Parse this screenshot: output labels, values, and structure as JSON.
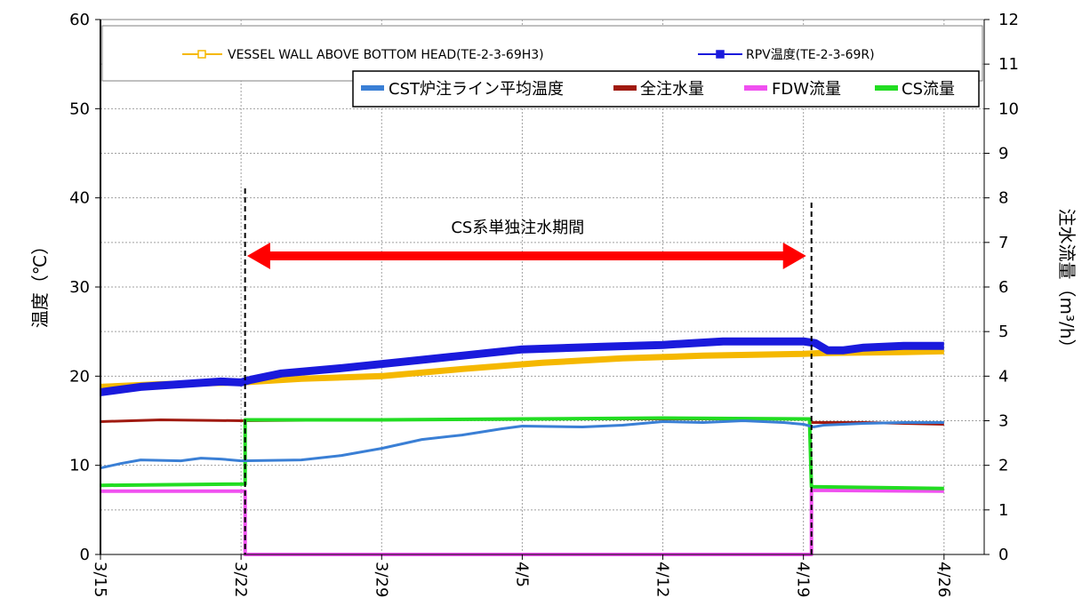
{
  "chart_data": {
    "type": "line",
    "title": "",
    "ylabel": "温度（℃）",
    "y2label": "注水流量（m³/h）",
    "ylim": [
      0,
      60
    ],
    "y2lim": [
      0,
      12
    ],
    "grid": true,
    "x_tick_labels": [
      "3/15",
      "3/22",
      "3/29",
      "4/5",
      "4/12",
      "4/19",
      "4/26"
    ],
    "x_tick_days": [
      0,
      7,
      14,
      21,
      28,
      35,
      42
    ],
    "y_ticks": [
      "0",
      "10",
      "20",
      "30",
      "40",
      "50",
      "60"
    ],
    "y2_ticks": [
      "0",
      "1",
      "2",
      "3",
      "4",
      "5",
      "6",
      "7",
      "8",
      "9",
      "10",
      "11",
      "12"
    ],
    "legend_top": [
      {
        "name": "VESSEL WALL ABOVE BOTTOM HEAD(TE-2-3-69H3)",
        "color": "#f5b800"
      },
      {
        "name": "RPV温度(TE-2-3-69R)",
        "color": "#1a1adc"
      }
    ],
    "legend_bottom": [
      {
        "name": "CST炉注ライン平均温度",
        "color": "#3a7fd5"
      },
      {
        "name": "全注水量",
        "color": "#a01a10"
      },
      {
        "name": "FDW流量",
        "color": "#f050f0"
      },
      {
        "name": "CS流量",
        "color": "#22dd22"
      }
    ],
    "annotation": {
      "text": "CS系単独注水期間",
      "from_day": 7.3,
      "to_day": 35.4
    },
    "vlines_days": [
      7.2,
      35.4
    ],
    "series": [
      {
        "name": "VESSEL WALL ABOVE BOTTOM HEAD(TE-2-3-69H3)",
        "axis": "left",
        "color": "#f5b800",
        "width": 7,
        "points": [
          [
            0,
            18.8
          ],
          [
            3,
            19.1
          ],
          [
            7,
            19.3
          ],
          [
            10,
            19.7
          ],
          [
            14,
            20.0
          ],
          [
            18,
            20.8
          ],
          [
            22,
            21.5
          ],
          [
            26,
            22.0
          ],
          [
            30,
            22.3
          ],
          [
            35,
            22.5
          ],
          [
            36,
            22.6
          ],
          [
            40,
            22.7
          ],
          [
            42,
            22.8
          ]
        ]
      },
      {
        "name": "RPV温度(TE-2-3-69R)",
        "axis": "left",
        "color": "#1a1adc",
        "width": 9,
        "points": [
          [
            0,
            18.2
          ],
          [
            2,
            18.8
          ],
          [
            4,
            19.1
          ],
          [
            6,
            19.4
          ],
          [
            7,
            19.3
          ],
          [
            7.5,
            19.6
          ],
          [
            9,
            20.3
          ],
          [
            12,
            20.9
          ],
          [
            15,
            21.6
          ],
          [
            18,
            22.3
          ],
          [
            21,
            23.0
          ],
          [
            25,
            23.3
          ],
          [
            28,
            23.5
          ],
          [
            31,
            23.9
          ],
          [
            35,
            23.9
          ],
          [
            35.6,
            23.7
          ],
          [
            36.2,
            22.9
          ],
          [
            37,
            22.9
          ],
          [
            38,
            23.2
          ],
          [
            40,
            23.4
          ],
          [
            42,
            23.4
          ]
        ]
      },
      {
        "name": "CST炉注ライン平均温度",
        "axis": "left",
        "color": "#3a7fd5",
        "width": 3,
        "points": [
          [
            0,
            9.7
          ],
          [
            1,
            10.2
          ],
          [
            2,
            10.6
          ],
          [
            4,
            10.5
          ],
          [
            5,
            10.8
          ],
          [
            6,
            10.7
          ],
          [
            7,
            10.5
          ],
          [
            10,
            10.6
          ],
          [
            12,
            11.1
          ],
          [
            14,
            11.9
          ],
          [
            16,
            12.9
          ],
          [
            18,
            13.4
          ],
          [
            20,
            14.1
          ],
          [
            21,
            14.4
          ],
          [
            24,
            14.3
          ],
          [
            26,
            14.5
          ],
          [
            28,
            14.9
          ],
          [
            30,
            14.8
          ],
          [
            32,
            15.0
          ],
          [
            34,
            14.8
          ],
          [
            35,
            14.6
          ],
          [
            35.5,
            14.3
          ],
          [
            36,
            14.5
          ],
          [
            38,
            14.7
          ],
          [
            40,
            14.8
          ],
          [
            42,
            14.8
          ]
        ]
      },
      {
        "name": "全注水量",
        "axis": "right",
        "color": "#a01a10",
        "width": 3,
        "points": [
          [
            0,
            2.98
          ],
          [
            3,
            3.02
          ],
          [
            7,
            3.0
          ],
          [
            14,
            3.02
          ],
          [
            21,
            3.04
          ],
          [
            28,
            3.04
          ],
          [
            35.3,
            3.04
          ],
          [
            35.4,
            2.96
          ],
          [
            38,
            2.96
          ],
          [
            42,
            2.92
          ]
        ]
      },
      {
        "name": "FDW流量",
        "axis": "right",
        "color": "#f050f0",
        "width": 4,
        "points": [
          [
            0,
            1.42
          ],
          [
            7.2,
            1.42
          ],
          [
            7.2,
            0.0
          ],
          [
            35.4,
            0.0
          ],
          [
            35.4,
            1.44
          ],
          [
            42,
            1.42
          ]
        ]
      },
      {
        "name": "CS流量",
        "axis": "right",
        "color": "#22dd22",
        "width": 4,
        "points": [
          [
            0,
            1.55
          ],
          [
            7.2,
            1.58
          ],
          [
            7.2,
            3.02
          ],
          [
            14,
            3.02
          ],
          [
            21,
            3.04
          ],
          [
            28,
            3.06
          ],
          [
            35.3,
            3.04
          ],
          [
            35.4,
            1.52
          ],
          [
            42,
            1.48
          ]
        ]
      }
    ]
  }
}
